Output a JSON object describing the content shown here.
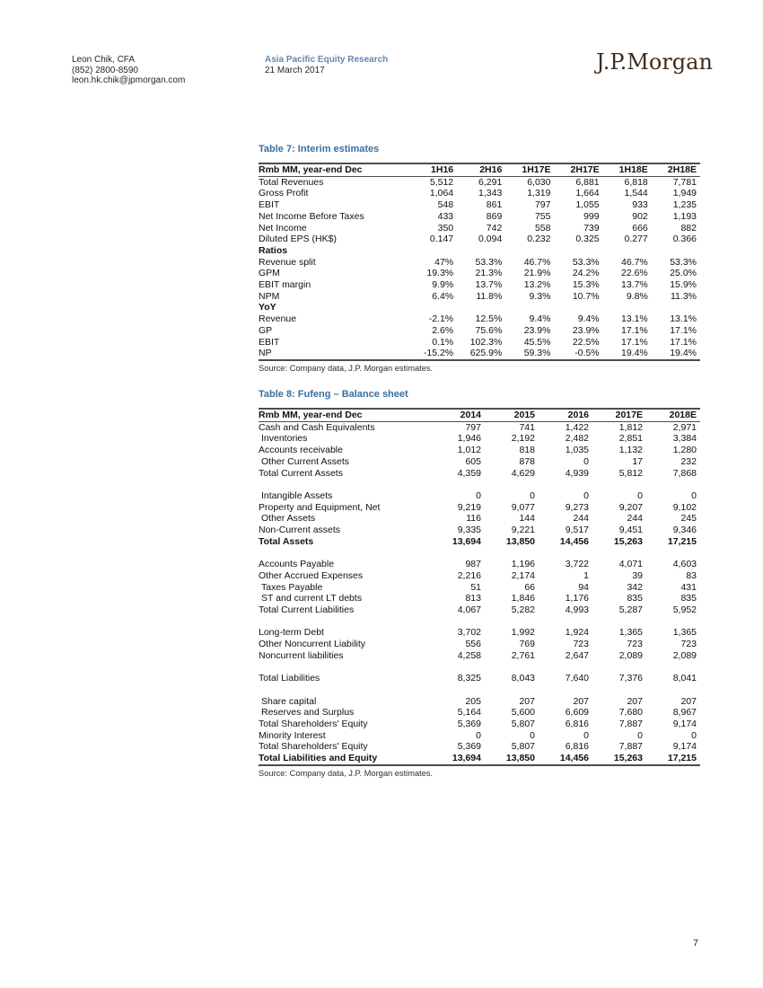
{
  "page": {
    "number": "7"
  },
  "colors": {
    "title_blue": "#3a6f9f",
    "division_blue": "#6288b4",
    "logo_brown": "#3e2d1f",
    "rule_dark": "#4d4d4d"
  },
  "header": {
    "analyst_name": "Leon Chik, CFA",
    "analyst_phone": "(852) 2800-8590",
    "analyst_email": "leon.hk.chik@jpmorgan.com",
    "division": "Asia Pacific Equity Research",
    "date": "21 March 2017",
    "logo_text": "J.P.Morgan"
  },
  "tables": {
    "interim": {
      "title": "Table 7: Interim estimates",
      "columns": [
        "Rmb MM, year-end Dec",
        "1H16",
        "2H16",
        "1H17E",
        "2H17E",
        "1H18E",
        "2H18E"
      ],
      "rows": [
        {
          "label": "Total Revenues",
          "values": [
            "5,512",
            "6,291",
            "6,030",
            "6,881",
            "6,818",
            "7,781"
          ]
        },
        {
          "label": "Gross Profit",
          "values": [
            "1,064",
            "1,343",
            "1,319",
            "1,664",
            "1,544",
            "1,949"
          ]
        },
        {
          "label": "EBIT",
          "values": [
            "548",
            "861",
            "797",
            "1,055",
            "933",
            "1,235"
          ]
        },
        {
          "label": "Net Income Before Taxes",
          "values": [
            "433",
            "869",
            "755",
            "999",
            "902",
            "1,193"
          ]
        },
        {
          "label": "Net Income",
          "values": [
            "350",
            "742",
            "558",
            "739",
            "666",
            "882"
          ]
        },
        {
          "label": "Diluted EPS (HK$)",
          "values": [
            "0.147",
            "0.094",
            "0.232",
            "0.325",
            "0.277",
            "0.366"
          ]
        },
        {
          "label": "Ratios",
          "bold": true,
          "values": [
            "",
            "",
            "",
            "",
            "",
            ""
          ]
        },
        {
          "label": "Revenue split",
          "values": [
            "47%",
            "53.3%",
            "46.7%",
            "53.3%",
            "46.7%",
            "53.3%"
          ]
        },
        {
          "label": "GPM",
          "values": [
            "19.3%",
            "21.3%",
            "21.9%",
            "24.2%",
            "22.6%",
            "25.0%"
          ]
        },
        {
          "label": "EBIT margin",
          "values": [
            "9.9%",
            "13.7%",
            "13.2%",
            "15.3%",
            "13.7%",
            "15.9%"
          ]
        },
        {
          "label": "NPM",
          "values": [
            "6.4%",
            "11.8%",
            "9.3%",
            "10.7%",
            "9.8%",
            "11.3%"
          ]
        },
        {
          "label": "YoY",
          "bold": true,
          "values": [
            "",
            "",
            "",
            "",
            "",
            ""
          ]
        },
        {
          "label": "Revenue",
          "values": [
            "-2.1%",
            "12.5%",
            "9.4%",
            "9.4%",
            "13.1%",
            "13.1%"
          ]
        },
        {
          "label": "GP",
          "values": [
            "2.6%",
            "75.6%",
            "23.9%",
            "23.9%",
            "17.1%",
            "17.1%"
          ]
        },
        {
          "label": "EBIT",
          "values": [
            "0.1%",
            "102.3%",
            "45.5%",
            "22.5%",
            "17.1%",
            "17.1%"
          ]
        },
        {
          "label": "NP",
          "values": [
            "-15.2%",
            "625.9%",
            "59.3%",
            "-0.5%",
            "19.4%",
            "19.4%"
          ]
        }
      ],
      "source": "Source: Company data, J.P. Morgan estimates."
    },
    "balance": {
      "title": "Table 8: Fufeng – Balance sheet",
      "columns": [
        "Rmb MM, year-end Dec",
        "2014",
        "2015",
        "2016",
        "2017E",
        "2018E"
      ],
      "rows": [
        {
          "label": "Cash and Cash Equivalents",
          "values": [
            "797",
            "741",
            "1,422",
            "1,812",
            "2,971"
          ]
        },
        {
          "label": "Inventories",
          "indent": true,
          "values": [
            "1,946",
            "2,192",
            "2,482",
            "2,851",
            "3,384"
          ]
        },
        {
          "label": "Accounts receivable",
          "values": [
            "1,012",
            "818",
            "1,035",
            "1,132",
            "1,280"
          ]
        },
        {
          "label": "Other Current Assets",
          "indent": true,
          "values": [
            "605",
            "878",
            "0",
            "17",
            "232"
          ]
        },
        {
          "label": "Total Current Assets",
          "values": [
            "4,359",
            "4,629",
            "4,939",
            "5,812",
            "7,868"
          ]
        },
        {
          "blank": true
        },
        {
          "label": "Intangible Assets",
          "indent": true,
          "values": [
            "0",
            "0",
            "0",
            "0",
            "0"
          ]
        },
        {
          "label": "Property and Equipment, Net",
          "values": [
            "9,219",
            "9,077",
            "9,273",
            "9,207",
            "9,102"
          ]
        },
        {
          "label": "Other Assets",
          "indent": true,
          "values": [
            "116",
            "144",
            "244",
            "244",
            "245"
          ]
        },
        {
          "label": "Non-Current assets",
          "values": [
            "9,335",
            "9,221",
            "9,517",
            "9,451",
            "9,346"
          ]
        },
        {
          "label": "Total Assets",
          "bold": true,
          "values": [
            "13,694",
            "13,850",
            "14,456",
            "15,263",
            "17,215"
          ]
        },
        {
          "blank": true
        },
        {
          "label": "Accounts Payable",
          "values": [
            "987",
            "1,196",
            "3,722",
            "4,071",
            "4,603"
          ]
        },
        {
          "label": "Other Accrued Expenses",
          "values": [
            "2,216",
            "2,174",
            "1",
            "39",
            "83"
          ]
        },
        {
          "label": "Taxes Payable",
          "indent": true,
          "values": [
            "51",
            "66",
            "94",
            "342",
            "431"
          ]
        },
        {
          "label": "ST and current LT debts",
          "indent": true,
          "values": [
            "813",
            "1,846",
            "1,176",
            "835",
            "835"
          ]
        },
        {
          "label": "Total Current Liabilities",
          "values": [
            "4,067",
            "5,282",
            "4,993",
            "5,287",
            "5,952"
          ]
        },
        {
          "blank": true
        },
        {
          "label": "Long-term Debt",
          "values": [
            "3,702",
            "1,992",
            "1,924",
            "1,365",
            "1,365"
          ]
        },
        {
          "label": "Other Noncurrent Liability",
          "values": [
            "556",
            "769",
            "723",
            "723",
            "723"
          ]
        },
        {
          "label": "Noncurrent liabilities",
          "values": [
            "4,258",
            "2,761",
            "2,647",
            "2,089",
            "2,089"
          ]
        },
        {
          "blank": true
        },
        {
          "label": "Total Liabilities",
          "values": [
            "8,325",
            "8,043",
            "7,640",
            "7,376",
            "8,041"
          ]
        },
        {
          "blank": true
        },
        {
          "label": "Share capital",
          "indent": true,
          "values": [
            "205",
            "207",
            "207",
            "207",
            "207"
          ]
        },
        {
          "label": "Reserves and Surplus",
          "indent": true,
          "values": [
            "5,164",
            "5,600",
            "6,609",
            "7,680",
            "8,967"
          ]
        },
        {
          "label": "Total Shareholders' Equity",
          "values": [
            "5,369",
            "5,807",
            "6,816",
            "7,887",
            "9,174"
          ]
        },
        {
          "label": "Minority Interest",
          "values": [
            "0",
            "0",
            "0",
            "0",
            "0"
          ]
        },
        {
          "label": "Total Shareholders' Equity",
          "values": [
            "5,369",
            "5,807",
            "6,816",
            "7,887",
            "9,174"
          ]
        },
        {
          "label": "Total Liabilities and Equity",
          "bold": true,
          "values": [
            "13,694",
            "13,850",
            "14,456",
            "15,263",
            "17,215"
          ]
        }
      ],
      "source": "Source: Company data, J.P. Morgan estimates."
    }
  }
}
